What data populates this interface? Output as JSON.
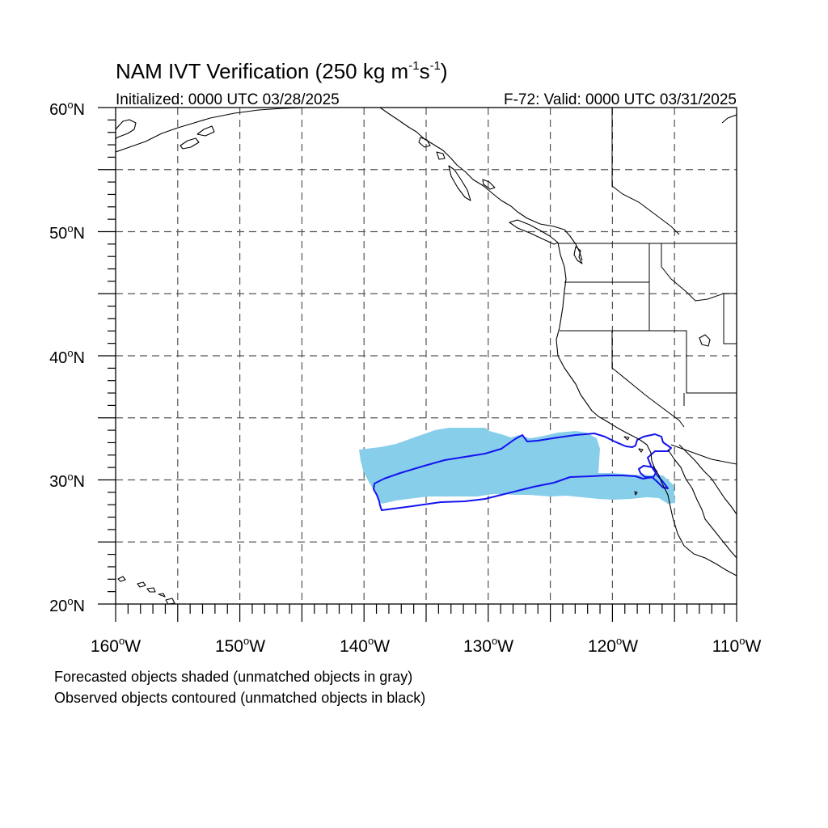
{
  "header": {
    "title_main": "NAM IVT Verification (250 kg m",
    "title_sup1": "-1",
    "title_s": "s",
    "title_sup2": "-1",
    "title_close": ")",
    "initialized": "Initialized: 0000 UTC 03/28/2025",
    "valid": "F-72: Valid: 0000 UTC 03/31/2025"
  },
  "axes": {
    "lat_labels": [
      {
        "value": "60",
        "unit": "o",
        "hemi": "N"
      },
      {
        "value": "50",
        "unit": "o",
        "hemi": "N"
      },
      {
        "value": "40",
        "unit": "o",
        "hemi": "N"
      },
      {
        "value": "30",
        "unit": "o",
        "hemi": "N"
      },
      {
        "value": "20",
        "unit": "o",
        "hemi": "N"
      }
    ],
    "lon_labels": [
      {
        "value": "160",
        "unit": "o",
        "hemi": "W"
      },
      {
        "value": "150",
        "unit": "o",
        "hemi": "W"
      },
      {
        "value": "140",
        "unit": "o",
        "hemi": "W"
      },
      {
        "value": "130",
        "unit": "o",
        "hemi": "W"
      },
      {
        "value": "120",
        "unit": "o",
        "hemi": "W"
      },
      {
        "value": "110",
        "unit": "o",
        "hemi": "W"
      }
    ],
    "lat_range": [
      20,
      60
    ],
    "lon_range": [
      -160,
      -110
    ],
    "grid_spacing_deg": 5,
    "grid": "dashed"
  },
  "legend": {
    "line1": "Forecasted objects shaded (unmatched objects in gray)",
    "line2": "Observed objects contoured (unmatched objects in black)"
  },
  "colors": {
    "forecast_fill": "#87ceeb",
    "observed_contour": "#1414ee",
    "coastline": "#000000",
    "grid": "#555555"
  }
}
